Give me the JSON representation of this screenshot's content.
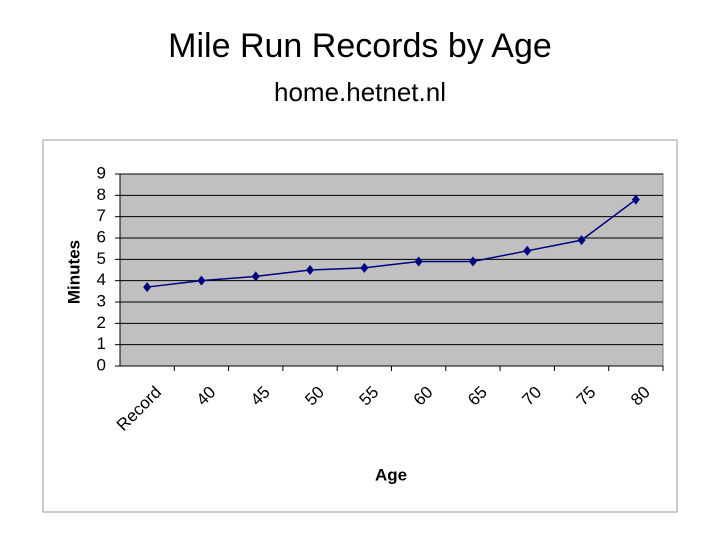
{
  "chart_data": {
    "type": "line",
    "title": "Mile Run Records by Age",
    "subtitle": "home.hetnet.nl",
    "x_label": "Age",
    "y_label": "Minutes",
    "categories": [
      "Record",
      "40",
      "45",
      "50",
      "55",
      "60",
      "65",
      "70",
      "75",
      "80"
    ],
    "series": [
      {
        "color": "#000080",
        "values": [
          3.7,
          4.0,
          4.2,
          4.5,
          4.6,
          4.9,
          4.9,
          5.4,
          5.9,
          7.8
        ]
      }
    ],
    "ylim": [
      0,
      9
    ],
    "yticks": [
      0,
      1,
      2,
      3,
      4,
      5,
      6,
      7,
      8,
      9
    ],
    "grid": true,
    "plot_background": "#c0c0c0"
  }
}
